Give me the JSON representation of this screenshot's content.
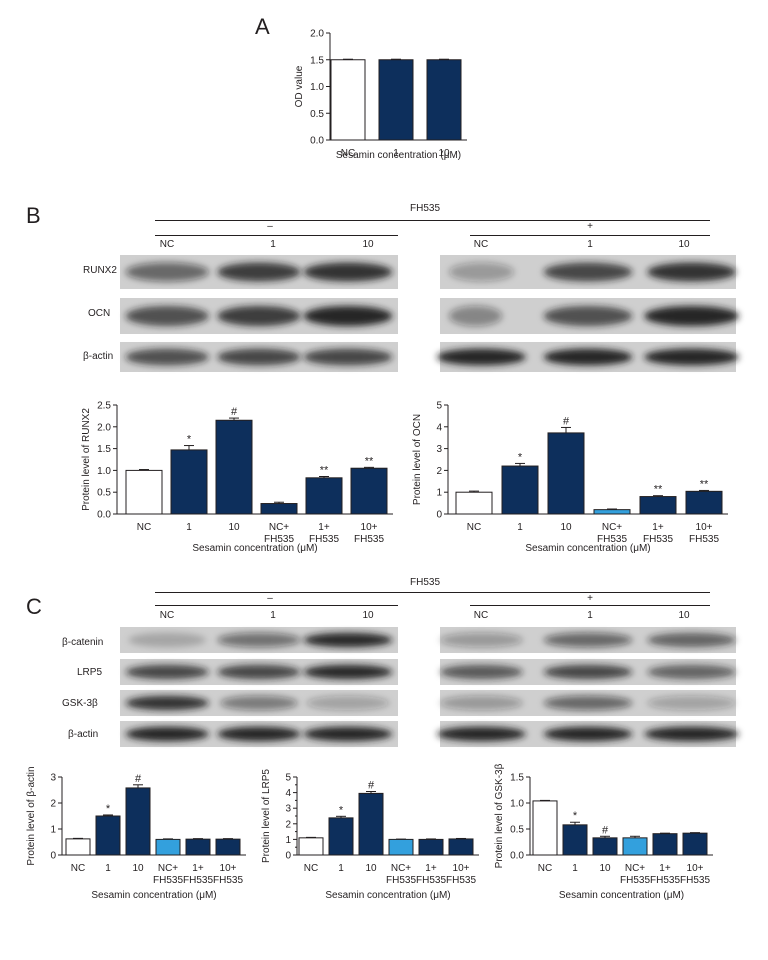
{
  "panels": {
    "a": "A",
    "b": "B",
    "c": "C"
  },
  "fh535": {
    "title": "FH535",
    "minus": "–",
    "plus": "+"
  },
  "blot_lanes": [
    "NC",
    "1",
    "10"
  ],
  "blot_rows_b": [
    "RUNX2",
    "OCN",
    "β-actin"
  ],
  "blot_rows_c": [
    "β-catenin",
    "LRP5",
    "GSK-3β",
    "β-actin"
  ],
  "colors": {
    "white": "#ffffff",
    "navy": "#0d2f5c",
    "light_blue": "#33a0dd",
    "ink": "#231f20"
  },
  "chart_data": [
    {
      "id": "A",
      "type": "bar",
      "categories": [
        "NC",
        "1",
        "10"
      ],
      "values": [
        1.5,
        1.5,
        1.5
      ],
      "errors": [
        0.01,
        0.01,
        0.01
      ],
      "bar_colors": [
        "white",
        "navy",
        "navy"
      ],
      "ylabel": "OD value",
      "xlabel": "Sesamin concentration (μM)",
      "ylim": [
        0,
        2.0
      ],
      "yticks": [
        "0.0",
        "0.5",
        "1.0",
        "1.5",
        "2.0"
      ],
      "annotations": [
        "",
        "",
        ""
      ]
    },
    {
      "id": "B-RUNX2",
      "type": "bar",
      "categories": [
        "NC",
        "1",
        "10",
        "NC+\nFH535",
        "1+\nFH535",
        "10+\nFH535"
      ],
      "values": [
        1.0,
        1.47,
        2.15,
        0.24,
        0.83,
        1.05
      ],
      "errors": [
        0.02,
        0.1,
        0.05,
        0.03,
        0.03,
        0.02
      ],
      "bar_colors": [
        "white",
        "navy",
        "navy",
        "navy",
        "navy",
        "navy"
      ],
      "ylabel": "Protein level of RUNX2",
      "xlabel": "Sesamin concentration (μM)",
      "ylim": [
        0,
        2.5
      ],
      "yticks": [
        "0.0",
        "0.5",
        "1.0",
        "1.5",
        "2.0",
        "2.5"
      ],
      "annotations": [
        "",
        "*",
        "#",
        "",
        "**",
        "**"
      ]
    },
    {
      "id": "B-OCN",
      "type": "bar",
      "categories": [
        "NC",
        "1",
        "10",
        "NC+\nFH535",
        "1+\nFH535",
        "10+\nFH535"
      ],
      "values": [
        1.0,
        2.2,
        3.72,
        0.2,
        0.8,
        1.04
      ],
      "errors": [
        0.05,
        0.12,
        0.25,
        0.03,
        0.04,
        0.04
      ],
      "bar_colors": [
        "white",
        "navy",
        "navy",
        "light_blue",
        "navy",
        "navy"
      ],
      "ylabel": "Protein level of OCN",
      "xlabel": "Sesamin concentration (μM)",
      "ylim": [
        0,
        5
      ],
      "yticks": [
        "0",
        "1",
        "2",
        "3",
        "4",
        "5"
      ],
      "annotations": [
        "",
        "*",
        "#",
        "",
        "**",
        "**"
      ]
    },
    {
      "id": "C-b-catenin",
      "type": "bar",
      "categories": [
        "NC",
        "1",
        "10",
        "NC+\nFH535",
        "1+\nFH535",
        "10+\nFH535"
      ],
      "values": [
        0.62,
        1.5,
        2.58,
        0.6,
        0.61,
        0.61
      ],
      "errors": [
        0.02,
        0.04,
        0.12,
        0.02,
        0.02,
        0.02
      ],
      "bar_colors": [
        "white",
        "navy",
        "navy",
        "light_blue",
        "navy",
        "navy"
      ],
      "ylabel": "Protein level of β-actin",
      "xlabel": "Sesamin concentration (μM)",
      "ylim": [
        0,
        3
      ],
      "yticks": [
        "0",
        "1",
        "2",
        "3"
      ],
      "annotations": [
        "",
        "*",
        "#",
        "",
        "",
        ""
      ]
    },
    {
      "id": "C-LRP5",
      "type": "bar",
      "categories": [
        "NC",
        "1",
        "10",
        "NC+\nFH535",
        "1+\nFH535",
        "10+\nFH535"
      ],
      "values": [
        1.1,
        2.38,
        3.95,
        1.0,
        1.0,
        1.03
      ],
      "errors": [
        0.03,
        0.1,
        0.12,
        0.02,
        0.03,
        0.03
      ],
      "bar_colors": [
        "white",
        "navy",
        "navy",
        "light_blue",
        "navy",
        "navy"
      ],
      "ylabel": "Protein level of LRP5",
      "xlabel": "Sesamin concentration (μM)",
      "ylim": [
        0,
        5
      ],
      "yticks": [
        "0",
        "1",
        "2",
        "3",
        "4",
        "5"
      ],
      "yticks_half": [
        "0.5",
        "1.5",
        "2.5",
        "3.5",
        "4.5"
      ],
      "annotations": [
        "",
        "*",
        "#",
        "",
        "",
        ""
      ]
    },
    {
      "id": "C-GSK-3b",
      "type": "bar",
      "categories": [
        "NC",
        "1",
        "10",
        "NC+\nFH535",
        "1+\nFH535",
        "10+\nFH535"
      ],
      "values": [
        1.04,
        0.58,
        0.33,
        0.33,
        0.41,
        0.42
      ],
      "errors": [
        0.01,
        0.05,
        0.03,
        0.03,
        0.01,
        0.01
      ],
      "bar_colors": [
        "white",
        "navy",
        "navy",
        "light_blue",
        "navy",
        "navy"
      ],
      "ylabel": "Protein level of GSK-3β",
      "xlabel": "Sesamin concentration (μM)",
      "ylim": [
        0,
        1.5
      ],
      "yticks": [
        "0.0",
        "0.5",
        "1.0",
        "1.5"
      ],
      "annotations": [
        "",
        "*",
        "#",
        "",
        "",
        ""
      ]
    }
  ]
}
